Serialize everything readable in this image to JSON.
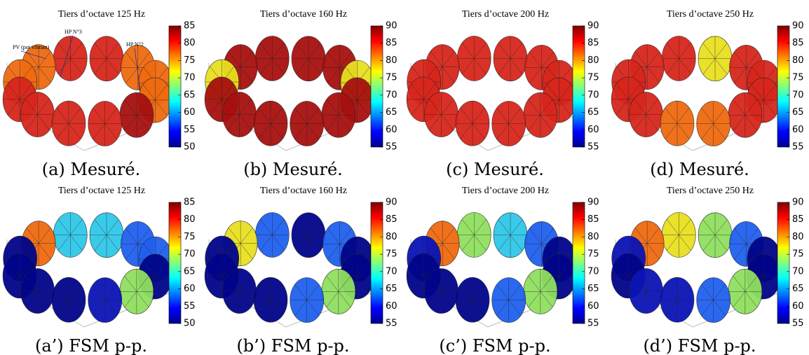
{
  "panels": [
    {
      "title": "Tiers d’octave 125 Hz",
      "caption": "(a) Mesuré.",
      "clim": [
        50,
        85
      ],
      "ticks": [
        50,
        55,
        60,
        65,
        70,
        75,
        80,
        85
      ]
    },
    {
      "title": "Tiers d’octave 160 Hz",
      "caption": "(b) Mesuré.",
      "clim": [
        55,
        90
      ],
      "ticks": [
        55,
        60,
        65,
        70,
        75,
        80,
        85,
        90
      ]
    },
    {
      "title": "Tiers d’octave 200 Hz",
      "caption": "(c) Mesuré.",
      "clim": [
        55,
        90
      ],
      "ticks": [
        55,
        60,
        65,
        70,
        75,
        80,
        85,
        90
      ]
    },
    {
      "title": "Tiers d’octave 250 Hz",
      "caption": "(d) Mesuré.",
      "clim": [
        55,
        90
      ],
      "ticks": [
        55,
        60,
        65,
        70,
        75,
        80,
        85,
        90
      ]
    },
    {
      "title": "Tiers d’octave 125 Hz",
      "caption": "(a’) FSM p-p.",
      "clim": [
        50,
        85
      ],
      "ticks": [
        50,
        55,
        60,
        65,
        70,
        75,
        80,
        85
      ]
    },
    {
      "title": "Tiers d’octave 160 Hz",
      "caption": "(b’) FSM p-p.",
      "clim": [
        55,
        90
      ],
      "ticks": [
        55,
        60,
        65,
        70,
        75,
        80,
        85,
        90
      ]
    },
    {
      "title": "Tiers d’octave 200 Hz",
      "caption": "(c’) FSM p-p.",
      "clim": [
        55,
        90
      ],
      "ticks": [
        55,
        60,
        65,
        70,
        75,
        80,
        85,
        90
      ]
    },
    {
      "title": "Tiers d’octave 250 Hz",
      "caption": "(d’) FSM p-p.",
      "clim": [
        55,
        90
      ],
      "ticks": [
        55,
        60,
        65,
        70,
        75,
        80,
        85,
        90
      ]
    }
  ],
  "annotations": [
    "PV (pot vibrant)",
    "HP N°3",
    "HP N°2"
  ]
}
